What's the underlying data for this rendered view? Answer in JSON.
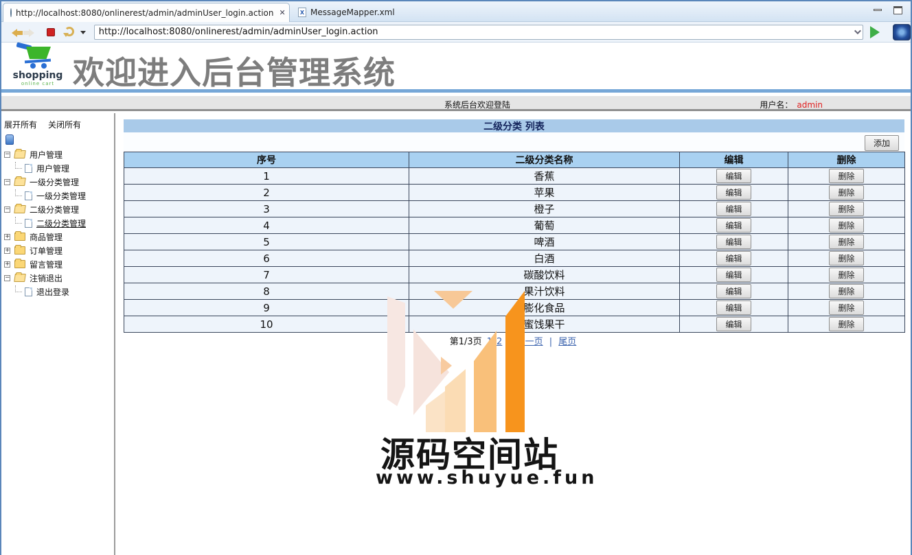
{
  "window": {
    "minimize": "minimize",
    "maximize": "maximize"
  },
  "tabs": [
    {
      "label": "http://localhost:8080/onlinerest/admin/adminUser_login.action",
      "icon": "globe-icon",
      "close": "✕",
      "active": true
    },
    {
      "label": "MessageMapper.xml",
      "icon": "xml-file-icon",
      "active": false
    }
  ],
  "toolbar": {
    "url": "http://localhost:8080/onlinerest/admin/adminUser_login.action"
  },
  "header": {
    "logo_text": "shopping",
    "logo_sub": "online cart",
    "title": "欢迎进入后台管理系统"
  },
  "welcome_bar": {
    "message": "系统后台欢迎登陆",
    "user_label": "用户名：",
    "username": "admin"
  },
  "sidebar": {
    "expand_all": "展开所有",
    "collapse_all": "关闭所有",
    "tree": [
      {
        "label": "用户管理",
        "type": "folder",
        "state": "expanded"
      },
      {
        "label": "用户管理",
        "type": "leaf"
      },
      {
        "label": "一级分类管理",
        "type": "folder",
        "state": "expanded"
      },
      {
        "label": "一级分类管理",
        "type": "leaf"
      },
      {
        "label": "二级分类管理",
        "type": "folder",
        "state": "expanded"
      },
      {
        "label": "二级分类管理",
        "type": "leaf",
        "selected": true
      },
      {
        "label": "商品管理",
        "type": "folder",
        "state": "collapsed"
      },
      {
        "label": "订单管理",
        "type": "folder",
        "state": "collapsed"
      },
      {
        "label": "留言管理",
        "type": "folder",
        "state": "collapsed"
      },
      {
        "label": "注销退出",
        "type": "folder",
        "state": "expanded"
      },
      {
        "label": "退出登录",
        "type": "leaf"
      }
    ]
  },
  "main": {
    "list_title": "二级分类 列表",
    "add_button": "添加",
    "table": {
      "headers": [
        "序号",
        "二级分类名称",
        "编辑",
        "删除"
      ],
      "edit_label": "编辑",
      "delete_label": "删除",
      "rows": [
        {
          "no": "1",
          "name": "香蕉"
        },
        {
          "no": "2",
          "name": "苹果"
        },
        {
          "no": "3",
          "name": "橙子"
        },
        {
          "no": "4",
          "name": "葡萄"
        },
        {
          "no": "5",
          "name": "啤酒"
        },
        {
          "no": "6",
          "name": "白酒"
        },
        {
          "no": "7",
          "name": "碳酸饮料"
        },
        {
          "no": "8",
          "name": "果汁饮料"
        },
        {
          "no": "9",
          "name": "膨化食品"
        },
        {
          "no": "10",
          "name": "蜜饯果干"
        }
      ]
    },
    "pagination": {
      "page_info": "第1/3页",
      "links": [
        "1",
        "2",
        "3",
        "下一页"
      ],
      "separator": "|",
      "last": "尾页"
    }
  },
  "watermark": {
    "title": "源码空间站",
    "url": "www.shuyue.fun"
  },
  "colors": {
    "accent_blue": "#a9cae9",
    "table_header_blue": "#a9d1f1",
    "link_blue": "#3a62ad",
    "admin_red": "#e02020",
    "watermark_orange": "#f7941d"
  }
}
